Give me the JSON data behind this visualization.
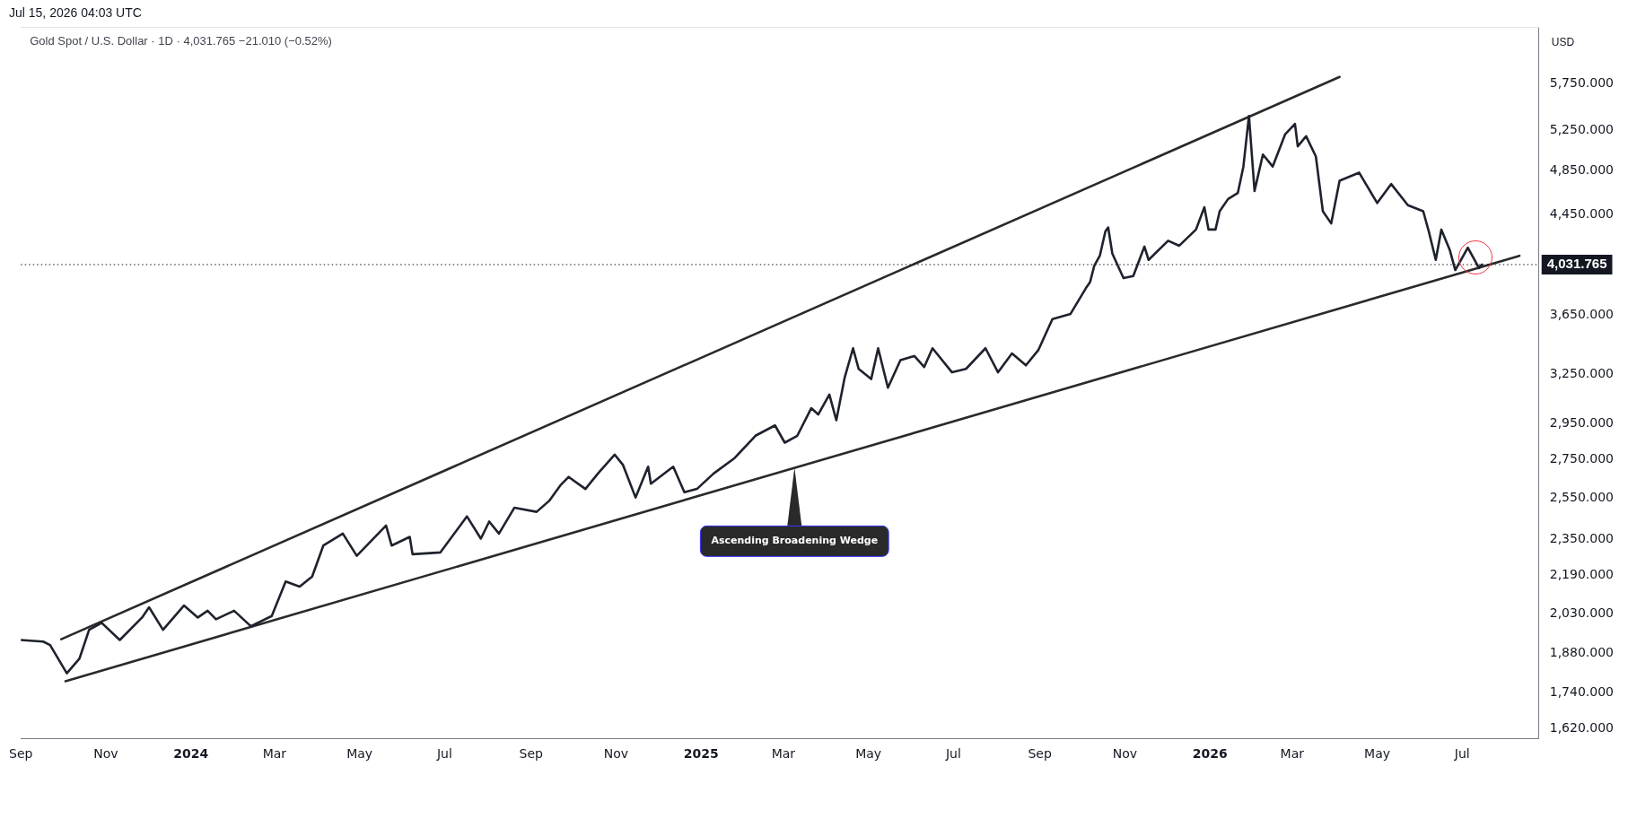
{
  "chart_data": {
    "type": "line",
    "title": "Gold Spot / U.S. Dollar · 1D · 4,031.765 −21.010 (−0.52%)",
    "ylabel": "USD",
    "annotations": [
      "Jul 15, 2026 04:03 UTC",
      {
        "text": "Ascending Broadening Wedge",
        "x": "2025-03-09",
        "y": 2706
      }
    ],
    "log": "y",
    "legend": false,
    "marker": "none",
    "line_style": "solid",
    "xlim": [
      "2023-09-01",
      "2026-08-25"
    ],
    "xticks": [
      {
        "value": "2023-09-01",
        "label": "Sep"
      },
      {
        "value": "2023-11-01",
        "label": "Nov"
      },
      {
        "value": "2024-01-01",
        "label": "2024"
      },
      {
        "value": "2024-03-01",
        "label": "Mar"
      },
      {
        "value": "2024-05-01",
        "label": "May"
      },
      {
        "value": "2024-07-01",
        "label": "Jul"
      },
      {
        "value": "2024-09-01",
        "label": "Sep"
      },
      {
        "value": "2024-11-01",
        "label": "Nov"
      },
      {
        "value": "2025-01-01",
        "label": "2025"
      },
      {
        "value": "2025-03-01",
        "label": "Mar"
      },
      {
        "value": "2025-05-01",
        "label": "May"
      },
      {
        "value": "2025-07-01",
        "label": "Jul"
      },
      {
        "value": "2025-09-01",
        "label": "Sep"
      },
      {
        "value": "2025-11-01",
        "label": "Nov"
      },
      {
        "value": "2026-01-01",
        "label": "2026"
      },
      {
        "value": "2026-03-01",
        "label": "Mar"
      },
      {
        "value": "2026-05-01",
        "label": "May"
      },
      {
        "value": "2026-07-01",
        "label": "Jul"
      }
    ],
    "ylim": [
      1590,
      6430
    ],
    "yticks": [
      {
        "value": 1620,
        "label": "1,620.000"
      },
      {
        "value": 1740,
        "label": "1,740.000"
      },
      {
        "value": 1880,
        "label": "1,880.000"
      },
      {
        "value": 2030,
        "label": "2,030.000"
      },
      {
        "value": 2190,
        "label": "2,190.000"
      },
      {
        "value": 2350,
        "label": "2,350.000"
      },
      {
        "value": 2550,
        "label": "2,550.000"
      },
      {
        "value": 2750,
        "label": "2,750.000"
      },
      {
        "value": 2950,
        "label": "2,950.000"
      },
      {
        "value": 3250,
        "label": "3,250.000"
      },
      {
        "value": 3650,
        "label": "3,650.000"
      },
      {
        "value": 4450,
        "label": "4,450.000"
      },
      {
        "value": 4850,
        "label": "4,850.000"
      },
      {
        "value": 5250,
        "label": "5,250.000"
      },
      {
        "value": 5750,
        "label": "5,750.000"
      }
    ],
    "ref_lines": [
      {
        "axis": "y",
        "value": 4031.765,
        "label": "4,031.765",
        "color": "#131722",
        "line_style": "dotted"
      }
    ],
    "series": [
      {
        "type": "line",
        "color": "#1e222d",
        "x": [
          "2023-09-01",
          "2023-09-17",
          "2023-09-22",
          "2023-10-04",
          "2023-10-13",
          "2023-10-20",
          "2023-10-29",
          "2023-11-11",
          "2023-11-27",
          "2023-12-02",
          "2023-12-12",
          "2023-12-27",
          "2024-01-06",
          "2024-01-13",
          "2024-01-19",
          "2024-02-01",
          "2024-02-13",
          "2024-02-28",
          "2024-03-09",
          "2024-03-19",
          "2024-03-28",
          "2024-04-05",
          "2024-04-19",
          "2024-04-29",
          "2024-05-20",
          "2024-05-24",
          "2024-06-06",
          "2024-06-08",
          "2024-06-28",
          "2024-07-17",
          "2024-07-27",
          "2024-08-02",
          "2024-08-09",
          "2024-08-20",
          "2024-09-05",
          "2024-09-14",
          "2024-09-22",
          "2024-09-28",
          "2024-10-10",
          "2024-10-19",
          "2024-10-31",
          "2024-11-06",
          "2024-11-15",
          "2024-11-24",
          "2024-11-26",
          "2024-12-12",
          "2024-12-20",
          "2024-12-29",
          "2025-01-10",
          "2025-01-25",
          "2025-02-09",
          "2025-02-23",
          "2025-03-02",
          "2025-03-11",
          "2025-03-21",
          "2025-03-26",
          "2025-04-03",
          "2025-04-08",
          "2025-04-14",
          "2025-04-20",
          "2025-04-24",
          "2025-05-03",
          "2025-05-08",
          "2025-05-15",
          "2025-05-24",
          "2025-06-03",
          "2025-06-10",
          "2025-06-16",
          "2025-06-30",
          "2025-07-10",
          "2025-07-24",
          "2025-08-02",
          "2025-08-12",
          "2025-08-22",
          "2025-08-31",
          "2025-09-10",
          "2025-09-23",
          "2025-10-04",
          "2025-10-07",
          "2025-10-10",
          "2025-10-14",
          "2025-10-18",
          "2025-10-20",
          "2025-10-23",
          "2025-10-31",
          "2025-11-07",
          "2025-11-15",
          "2025-11-18",
          "2025-12-02",
          "2025-12-10",
          "2025-12-22",
          "2025-12-28",
          "2025-12-31",
          "2026-01-05",
          "2026-01-08",
          "2026-01-14",
          "2026-01-21",
          "2026-01-25",
          "2026-01-29",
          "2026-02-02",
          "2026-02-08",
          "2026-02-15",
          "2026-02-24",
          "2026-03-03",
          "2026-03-05",
          "2026-03-11",
          "2026-03-18",
          "2026-03-23",
          "2026-03-29",
          "2026-04-04",
          "2026-04-18",
          "2026-05-01",
          "2026-05-11",
          "2026-05-23",
          "2026-06-03",
          "2026-06-07",
          "2026-06-12",
          "2026-06-16",
          "2026-06-22",
          "2026-06-26",
          "2026-07-05",
          "2026-07-09",
          "2026-07-13",
          "2026-07-15"
        ],
        "values": [
          1929,
          1923,
          1910,
          1807,
          1859,
          1968,
          1995,
          1929,
          2016,
          2057,
          1968,
          2064,
          2016,
          2043,
          2009,
          2043,
          1982,
          2022,
          2164,
          2142,
          2185,
          2322,
          2377,
          2276,
          2415,
          2322,
          2362,
          2283,
          2291,
          2459,
          2354,
          2434,
          2377,
          2501,
          2481,
          2535,
          2613,
          2657,
          2595,
          2675,
          2776,
          2720,
          2552,
          2711,
          2622,
          2711,
          2578,
          2595,
          2675,
          2757,
          2881,
          2940,
          2842,
          2881,
          3041,
          3004,
          3124,
          2970,
          3230,
          3421,
          3285,
          3220,
          3421,
          3166,
          3342,
          3369,
          3297,
          3421,
          3263,
          3285,
          3421,
          3263,
          3386,
          3308,
          3410,
          3623,
          3660,
          3849,
          3895,
          4021,
          4102,
          4303,
          4337,
          4119,
          3926,
          3942,
          4177,
          4069,
          4225,
          4184,
          4319,
          4513,
          4319,
          4319,
          4477,
          4586,
          4640,
          4888,
          5399,
          4659,
          5005,
          4888,
          5209,
          5314,
          5086,
          5188,
          4985,
          4477,
          4371,
          4753,
          4830,
          4550,
          4723,
          4531,
          4477,
          4303,
          4069,
          4319,
          4151,
          3989,
          4168,
          4086,
          4004,
          4031.765
        ]
      },
      {
        "type": "line",
        "color": "#2a2a2a",
        "x": [
          "2023-09-30",
          "2026-04-04"
        ],
        "values": [
          1932,
          5828
        ]
      },
      {
        "type": "line",
        "color": "#2a2a2a",
        "x": [
          "2023-10-03",
          "2026-08-11"
        ],
        "values": [
          1779,
          4102
        ]
      }
    ]
  }
}
